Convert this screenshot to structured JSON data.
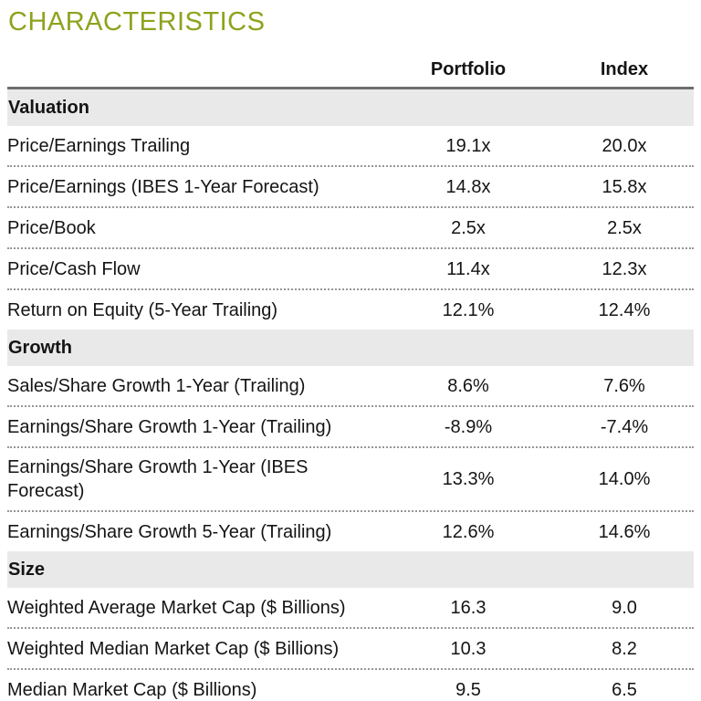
{
  "title": "CHARACTERISTICS",
  "colors": {
    "title_green": "#8CA31D",
    "section_band_gray": "#E9E9E9",
    "header_rule_gray": "#6E6E6E",
    "dotted_separator_gray": "#969696",
    "bottom_rule_gray": "#7F7F7F"
  },
  "table": {
    "columns": [
      "Portfolio",
      "Index"
    ],
    "sections": [
      {
        "name": "Valuation",
        "rows": [
          {
            "label": "Price/Earnings Trailing",
            "portfolio": "19.1x",
            "index": "20.0x"
          },
          {
            "label": "Price/Earnings (IBES 1-Year Forecast)",
            "portfolio": "14.8x",
            "index": "15.8x"
          },
          {
            "label": "Price/Book",
            "portfolio": "2.5x",
            "index": "2.5x"
          },
          {
            "label": "Price/Cash Flow",
            "portfolio": "11.4x",
            "index": "12.3x"
          },
          {
            "label": "Return on Equity (5-Year Trailing)",
            "portfolio": "12.1%",
            "index": "12.4%"
          }
        ]
      },
      {
        "name": "Growth",
        "rows": [
          {
            "label": "Sales/Share Growth 1-Year (Trailing)",
            "portfolio": "8.6%",
            "index": "7.6%"
          },
          {
            "label": "Earnings/Share Growth 1-Year (Trailing)",
            "portfolio": "-8.9%",
            "index": "-7.4%"
          },
          {
            "label": "Earnings/Share Growth 1-Year (IBES Forecast)",
            "portfolio": "13.3%",
            "index": "14.0%"
          },
          {
            "label": "Earnings/Share Growth 5-Year (Trailing)",
            "portfolio": "12.6%",
            "index": "14.6%"
          }
        ]
      },
      {
        "name": "Size",
        "rows": [
          {
            "label": "Weighted Average Market Cap ($ Billions)",
            "portfolio": "16.3",
            "index": "9.0"
          },
          {
            "label": "Weighted Median Market Cap ($ Billions)",
            "portfolio": "10.3",
            "index": "8.2"
          },
          {
            "label": "Median Market Cap ($ Billions)",
            "portfolio": "9.5",
            "index": "6.5"
          }
        ]
      }
    ]
  }
}
